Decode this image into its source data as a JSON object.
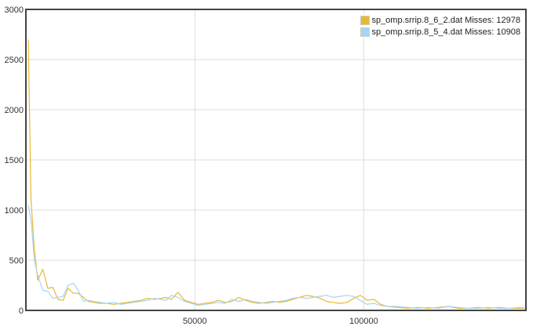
{
  "chart_data": {
    "type": "line",
    "title": "",
    "xlabel": "",
    "ylabel": "",
    "xlim": [
      0,
      148000
    ],
    "ylim": [
      0,
      3000
    ],
    "x_ticks": [
      "50000",
      "100000"
    ],
    "y_ticks": [
      "0",
      "500",
      "1000",
      "1500",
      "2000",
      "2500",
      "3000"
    ],
    "grid": true,
    "legend_position": "top-right",
    "series": [
      {
        "name": "sp_omp.srrip.8_6_2.dat Misses: 12978",
        "color": "#e8b830",
        "x": [
          700,
          1500,
          2500,
          3500,
          5000,
          6500,
          8000,
          9500,
          11000,
          12500,
          14000,
          15500,
          17000,
          18500,
          20000,
          22000,
          24000,
          26000,
          28000,
          30000,
          32000,
          34000,
          36000,
          38000,
          40000,
          41500,
          43000,
          45000,
          47000,
          49000,
          51000,
          53000,
          55000,
          57000,
          59000,
          61000,
          63000,
          65000,
          67000,
          69000,
          71000,
          73000,
          75000,
          77000,
          79000,
          81000,
          83000,
          85000,
          87000,
          89000,
          91000,
          93000,
          95000,
          97000,
          99000,
          101000,
          103000,
          105000,
          107000,
          110000,
          113000,
          116000,
          119000,
          122000,
          125000,
          128000,
          131000,
          134000,
          137000,
          140000,
          143000,
          146000,
          148000
        ],
        "y": [
          2700,
          1100,
          600,
          300,
          410,
          220,
          230,
          110,
          100,
          220,
          170,
          170,
          130,
          90,
          80,
          70,
          70,
          60,
          70,
          80,
          90,
          100,
          120,
          110,
          120,
          130,
          110,
          180,
          100,
          80,
          60,
          70,
          80,
          100,
          80,
          90,
          130,
          100,
          80,
          70,
          80,
          90,
          80,
          90,
          110,
          130,
          150,
          140,
          120,
          90,
          80,
          70,
          80,
          120,
          150,
          100,
          110,
          60,
          40,
          30,
          20,
          30,
          20,
          30,
          40,
          20,
          20,
          30,
          20,
          30,
          20,
          20,
          20
        ]
      },
      {
        "name": "sp_omp.srrip.8_5_4.dat Misses: 10908",
        "color": "#a8d4f0",
        "x": [
          700,
          1500,
          2500,
          3500,
          5000,
          6500,
          8000,
          9500,
          11000,
          12500,
          14000,
          15500,
          17000,
          18500,
          20000,
          22000,
          24000,
          26000,
          28000,
          30000,
          32000,
          34000,
          36000,
          38000,
          40000,
          41500,
          43000,
          45000,
          47000,
          49000,
          51000,
          53000,
          55000,
          57000,
          59000,
          61000,
          63000,
          65000,
          67000,
          69000,
          71000,
          73000,
          75000,
          77000,
          79000,
          81000,
          83000,
          85000,
          87000,
          89000,
          91000,
          93000,
          95000,
          97000,
          99000,
          101000,
          103000,
          105000,
          107000,
          110000,
          113000,
          116000,
          119000,
          122000,
          125000,
          128000,
          131000,
          134000,
          137000,
          140000,
          143000,
          146000,
          148000
        ],
        "y": [
          1050,
          900,
          500,
          350,
          200,
          190,
          120,
          130,
          140,
          250,
          270,
          200,
          90,
          100,
          90,
          80,
          70,
          80,
          60,
          70,
          80,
          90,
          100,
          120,
          110,
          100,
          150,
          130,
          90,
          70,
          50,
          60,
          70,
          80,
          70,
          110,
          90,
          110,
          90,
          80,
          70,
          80,
          90,
          100,
          120,
          130,
          120,
          130,
          140,
          150,
          130,
          140,
          150,
          140,
          100,
          60,
          70,
          50,
          40,
          40,
          30,
          20,
          30,
          20,
          40,
          30,
          20,
          20,
          30,
          20,
          20,
          30,
          20
        ]
      }
    ]
  }
}
